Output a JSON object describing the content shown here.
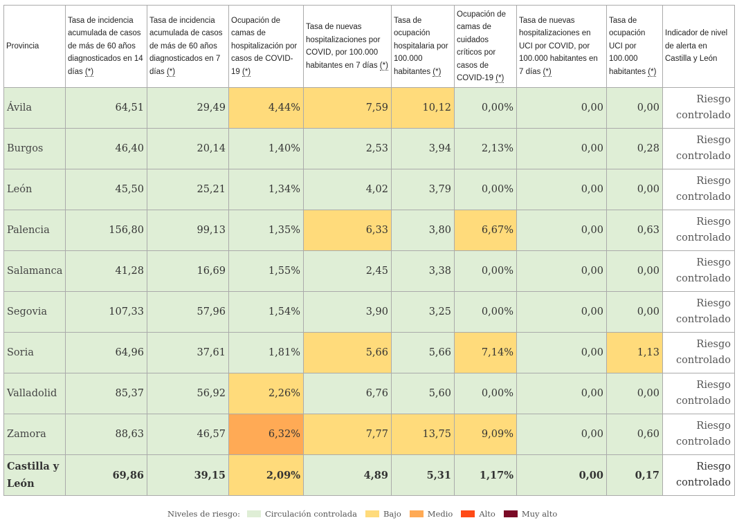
{
  "table": {
    "headers": [
      {
        "label": "Provincia",
        "note": ""
      },
      {
        "label": "Tasa de incidencia acumulada de casos de más de 60 años diagnosticados en 14 días ",
        "note": "(*)"
      },
      {
        "label": "Tasa de incidencia acumulada de casos de más de 60 años diagnosticados en 7 días ",
        "note": "(*)"
      },
      {
        "label": "Ocupación de camas de hospitalización por casos de COVID-19 ",
        "note": "(*)"
      },
      {
        "label": "Tasa de nuevas hospitalizaciones por COVID, por 100.000 habitantes en 7 días ",
        "note": "(*)"
      },
      {
        "label": "Tasa de ocupación hospitalaria por 100.000 habitantes ",
        "note": "(*)"
      },
      {
        "label": "Ocupación de camas de cuidados críticos por casos de COVID-19 ",
        "note": "(*)"
      },
      {
        "label": "Tasa de nuevas hospitalizaciones en UCI por COVID, por 100.000 habitantes en 7 días ",
        "note": "(*)"
      },
      {
        "label": "Tasa de ocupación UCI por 100.000 habitantes ",
        "note": "(*)"
      },
      {
        "label": "Indicador de nivel de alerta en Castilla y León",
        "note": ""
      }
    ],
    "rows": [
      {
        "province": "Ávila",
        "values": [
          "64,51",
          "29,49",
          "4,44%",
          "7,59",
          "10,12",
          "0,00%",
          "0,00",
          "0,00"
        ],
        "levels": [
          "c",
          "c",
          "b",
          "b",
          "b",
          "c",
          "c",
          "c"
        ],
        "indicator": "Riesgo controlado"
      },
      {
        "province": "Burgos",
        "values": [
          "46,40",
          "20,14",
          "1,40%",
          "2,53",
          "3,94",
          "2,13%",
          "0,00",
          "0,28"
        ],
        "levels": [
          "c",
          "c",
          "c",
          "c",
          "c",
          "c",
          "c",
          "c"
        ],
        "indicator": "Riesgo controlado"
      },
      {
        "province": "León",
        "values": [
          "45,50",
          "25,21",
          "1,34%",
          "4,02",
          "3,79",
          "0,00%",
          "0,00",
          "0,00"
        ],
        "levels": [
          "c",
          "c",
          "c",
          "c",
          "c",
          "c",
          "c",
          "c"
        ],
        "indicator": "Riesgo controlado"
      },
      {
        "province": "Palencia",
        "values": [
          "156,80",
          "99,13",
          "1,35%",
          "6,33",
          "3,80",
          "6,67%",
          "0,00",
          "0,63"
        ],
        "levels": [
          "c",
          "c",
          "c",
          "b",
          "c",
          "b",
          "c",
          "c"
        ],
        "indicator": "Riesgo controlado"
      },
      {
        "province": "Salamanca",
        "values": [
          "41,28",
          "16,69",
          "1,55%",
          "2,45",
          "3,38",
          "0,00%",
          "0,00",
          "0,00"
        ],
        "levels": [
          "c",
          "c",
          "c",
          "c",
          "c",
          "c",
          "c",
          "c"
        ],
        "indicator": "Riesgo controlado"
      },
      {
        "province": "Segovia",
        "values": [
          "107,33",
          "57,96",
          "1,54%",
          "3,90",
          "3,25",
          "0,00%",
          "0,00",
          "0,00"
        ],
        "levels": [
          "c",
          "c",
          "c",
          "c",
          "c",
          "c",
          "c",
          "c"
        ],
        "indicator": "Riesgo controlado"
      },
      {
        "province": "Soria",
        "values": [
          "64,96",
          "37,61",
          "1,81%",
          "5,66",
          "5,66",
          "7,14%",
          "0,00",
          "1,13"
        ],
        "levels": [
          "c",
          "c",
          "c",
          "b",
          "c",
          "b",
          "c",
          "b"
        ],
        "indicator": "Riesgo controlado"
      },
      {
        "province": "Valladolid",
        "values": [
          "85,37",
          "56,92",
          "2,26%",
          "6,76",
          "5,60",
          "0,00%",
          "0,00",
          "0,00"
        ],
        "levels": [
          "c",
          "c",
          "b",
          "c",
          "c",
          "c",
          "c",
          "c"
        ],
        "indicator": "Riesgo controlado"
      },
      {
        "province": "Zamora",
        "values": [
          "88,63",
          "46,57",
          "6,32%",
          "7,77",
          "13,75",
          "9,09%",
          "0,00",
          "0,60"
        ],
        "levels": [
          "c",
          "c",
          "m",
          "b",
          "b",
          "b",
          "c",
          "c"
        ],
        "indicator": "Riesgo controlado"
      },
      {
        "province": "Castilla y León",
        "values": [
          "69,86",
          "39,15",
          "2,09%",
          "4,89",
          "5,31",
          "1,17%",
          "0,00",
          "0,17"
        ],
        "levels": [
          "c",
          "c",
          "b",
          "c",
          "c",
          "c",
          "c",
          "c"
        ],
        "indicator": "Riesgo controlado",
        "total": true
      }
    ]
  },
  "legend": {
    "label": "Niveles de riesgo:",
    "items": [
      {
        "label": "Circulación controlada",
        "color": "#dfeed6"
      },
      {
        "label": "Bajo",
        "color": "#ffdb7b"
      },
      {
        "label": "Medio",
        "color": "#ffaa55"
      },
      {
        "label": "Alto",
        "color": "#ff4a16"
      },
      {
        "label": "Muy alto",
        "color": "#7a0a26"
      }
    ]
  }
}
